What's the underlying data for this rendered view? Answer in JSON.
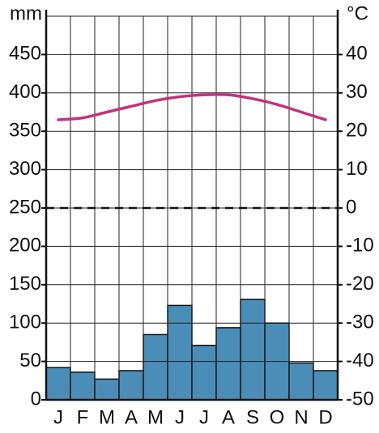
{
  "chart_data": {
    "type": "bar",
    "y_label": "mm",
    "y2_label": "°C",
    "categories": [
      "J",
      "F",
      "M",
      "A",
      "M",
      "J",
      "J",
      "A",
      "S",
      "O",
      "N",
      "D"
    ],
    "series": [
      {
        "type": "bar",
        "axis": "y",
        "color": "#4a8db6",
        "values": [
          42,
          36,
          27,
          38,
          85,
          123,
          71,
          94,
          131,
          100,
          48,
          38
        ]
      },
      {
        "type": "line",
        "axis": "y2",
        "color": "#c2327c",
        "values": [
          23,
          23.5,
          25,
          26.5,
          28,
          29,
          29.5,
          29.5,
          28.5,
          27,
          25,
          23
        ]
      }
    ],
    "ylim": [
      0,
      500
    ],
    "yticks": [
      0,
      50,
      100,
      150,
      200,
      250,
      300,
      350,
      400,
      450
    ],
    "y2lim": [
      -50,
      50
    ],
    "y2ticks": [
      -50,
      -40,
      -30,
      -20,
      -10,
      0,
      10,
      20,
      30,
      40
    ],
    "grid": true
  }
}
